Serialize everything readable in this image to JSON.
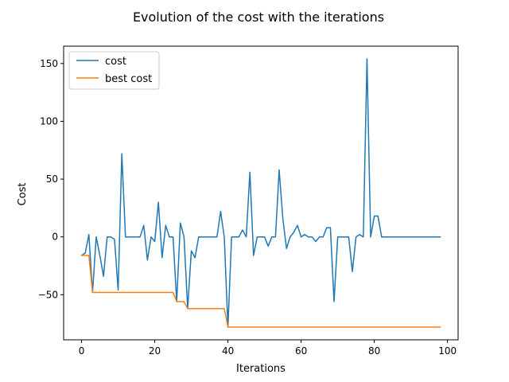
{
  "chart_data": {
    "type": "line",
    "title": "Evolution of the cost with the iterations",
    "xlabel": "Iterations",
    "ylabel": "Cost",
    "xlim": [
      -4.9,
      102.9
    ],
    "ylim": [
      -89,
      165
    ],
    "xticks": [
      0,
      20,
      40,
      60,
      80,
      100
    ],
    "yticks": [
      -50,
      0,
      50,
      100,
      150
    ],
    "ytick_labels": [
      "−50",
      "0",
      "50",
      "100",
      "150"
    ],
    "grid": false,
    "legend_position": "top-left",
    "series": [
      {
        "name": "cost",
        "color": "#1f77b4",
        "x": [
          0,
          1,
          2,
          3,
          4,
          5,
          6,
          7,
          8,
          9,
          10,
          11,
          12,
          13,
          14,
          15,
          16,
          17,
          18,
          19,
          20,
          21,
          22,
          23,
          24,
          25,
          26,
          27,
          28,
          29,
          30,
          31,
          32,
          33,
          34,
          35,
          36,
          37,
          38,
          39,
          40,
          41,
          42,
          43,
          44,
          45,
          46,
          47,
          48,
          49,
          50,
          51,
          52,
          53,
          54,
          55,
          56,
          57,
          58,
          59,
          60,
          61,
          62,
          63,
          64,
          65,
          66,
          67,
          68,
          69,
          70,
          71,
          72,
          73,
          74,
          75,
          76,
          77,
          78,
          79,
          80,
          81,
          82,
          83,
          84,
          85,
          86,
          87,
          88,
          89,
          90,
          91,
          92,
          93,
          94,
          95,
          96,
          97,
          98
        ],
        "values": [
          -16,
          -14,
          2,
          -48,
          0,
          -16,
          -34,
          0,
          0,
          -2,
          -46,
          72,
          0,
          0,
          0,
          0,
          0,
          10,
          -20,
          0,
          -4,
          30,
          -18,
          10,
          0,
          0,
          -56,
          12,
          0,
          -62,
          -12,
          -18,
          0,
          0,
          0,
          0,
          0,
          0,
          22,
          0,
          -78,
          0,
          0,
          0,
          6,
          0,
          56,
          -16,
          0,
          0,
          0,
          -8,
          0,
          0,
          58,
          16,
          -10,
          0,
          4,
          10,
          0,
          2,
          0,
          0,
          -4,
          0,
          0,
          8,
          8,
          -56,
          0,
          0,
          0,
          0,
          -30,
          0,
          2,
          0,
          154,
          0,
          18,
          18,
          0,
          0,
          0,
          0,
          0,
          0,
          0,
          0,
          0,
          0,
          0,
          0,
          0,
          0,
          0,
          0,
          0
        ]
      },
      {
        "name": "best cost",
        "color": "#ff7f0e",
        "x": [
          0,
          1,
          2,
          3,
          4,
          5,
          6,
          7,
          8,
          9,
          10,
          11,
          12,
          13,
          14,
          15,
          16,
          17,
          18,
          19,
          20,
          21,
          22,
          23,
          24,
          25,
          26,
          27,
          28,
          29,
          30,
          31,
          32,
          33,
          34,
          35,
          36,
          37,
          38,
          39,
          40,
          41,
          42,
          43,
          44,
          45,
          46,
          47,
          48,
          49,
          50,
          51,
          52,
          53,
          54,
          55,
          56,
          57,
          58,
          59,
          60,
          61,
          62,
          63,
          64,
          65,
          66,
          67,
          68,
          69,
          70,
          71,
          72,
          73,
          74,
          75,
          76,
          77,
          78,
          79,
          80,
          81,
          82,
          83,
          84,
          85,
          86,
          87,
          88,
          89,
          90,
          91,
          92,
          93,
          94,
          95,
          96,
          97,
          98
        ],
        "values": [
          -16,
          -16,
          -16,
          -48,
          -48,
          -48,
          -48,
          -48,
          -48,
          -48,
          -48,
          -48,
          -48,
          -48,
          -48,
          -48,
          -48,
          -48,
          -48,
          -48,
          -48,
          -48,
          -48,
          -48,
          -48,
          -48,
          -56,
          -56,
          -56,
          -62,
          -62,
          -62,
          -62,
          -62,
          -62,
          -62,
          -62,
          -62,
          -62,
          -62,
          -78,
          -78,
          -78,
          -78,
          -78,
          -78,
          -78,
          -78,
          -78,
          -78,
          -78,
          -78,
          -78,
          -78,
          -78,
          -78,
          -78,
          -78,
          -78,
          -78,
          -78,
          -78,
          -78,
          -78,
          -78,
          -78,
          -78,
          -78,
          -78,
          -78,
          -78,
          -78,
          -78,
          -78,
          -78,
          -78,
          -78,
          -78,
          -78,
          -78,
          -78,
          -78,
          -78,
          -78,
          -78,
          -78,
          -78,
          -78,
          -78,
          -78,
          -78,
          -78,
          -78,
          -78,
          -78,
          -78,
          -78,
          -78,
          -78
        ]
      }
    ]
  }
}
